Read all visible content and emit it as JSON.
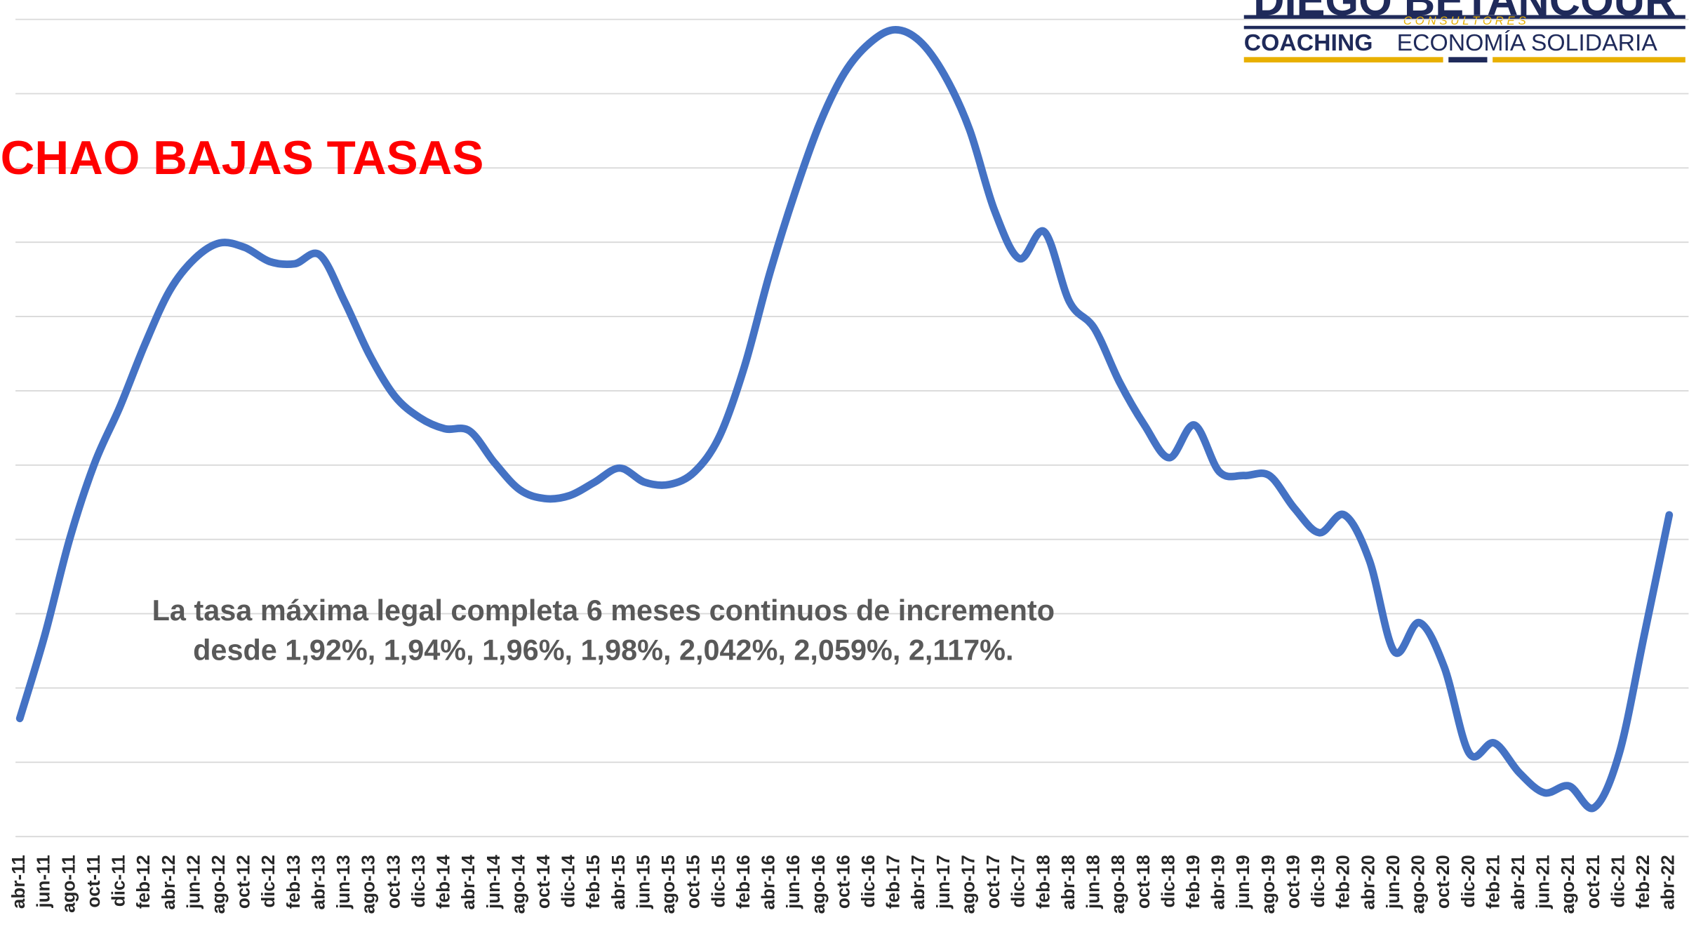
{
  "chart_data": {
    "type": "line",
    "title": "CHAO BAJAS TASAS",
    "annotation": [
      "La tasa máxima legal completa 6 meses continuos de incremento",
      "desde 1,92%, 1,94%, 1,96%, 1,98%, 2,042%, 2,059%, 2,117%."
    ],
    "logo": {
      "name": "DIEGO BETANCOUR",
      "tagline": "C O N S U L T O R E S",
      "line1": "COACHING",
      "line2": "ECONOMÍA SOLIDARIA"
    },
    "categories": [
      "abr-11",
      "jun-11",
      "ago-11",
      "oct-11",
      "dic-11",
      "feb-12",
      "abr-12",
      "jun-12",
      "ago-12",
      "oct-12",
      "dic-12",
      "feb-13",
      "abr-13",
      "jun-13",
      "ago-13",
      "oct-13",
      "dic-13",
      "feb-14",
      "abr-14",
      "jun-14",
      "ago-14",
      "oct-14",
      "dic-14",
      "feb-15",
      "abr-15",
      "jun-15",
      "ago-15",
      "oct-15",
      "dic-15",
      "feb-16",
      "abr-16",
      "jun-16",
      "ago-16",
      "oct-16",
      "dic-16",
      "feb-17",
      "abr-17",
      "jun-17",
      "ago-17",
      "oct-17",
      "dic-17",
      "feb-18",
      "abr-18",
      "jun-18",
      "ago-18",
      "oct-18",
      "dic-18",
      "feb-19",
      "abr-19",
      "jun-19",
      "ago-19",
      "oct-19",
      "dic-19",
      "feb-20",
      "abr-20",
      "jun-20",
      "ago-20",
      "oct-20",
      "dic-20",
      "feb-21",
      "abr-21",
      "jun-21",
      "ago-21",
      "oct-21",
      "dic-21",
      "feb-22",
      "abr-22"
    ],
    "values": [
      1.59,
      2.71,
      4.01,
      5.03,
      5.78,
      6.62,
      7.35,
      7.78,
      7.99,
      7.93,
      7.74,
      7.71,
      7.83,
      7.2,
      6.48,
      5.93,
      5.64,
      5.49,
      5.46,
      5.03,
      4.67,
      4.55,
      4.59,
      4.77,
      4.96,
      4.77,
      4.74,
      4.91,
      5.39,
      6.33,
      7.57,
      8.65,
      9.59,
      10.28,
      10.68,
      10.86,
      10.71,
      10.25,
      9.52,
      8.43,
      7.78,
      8.14,
      7.2,
      6.84,
      6.12,
      5.54,
      5.1,
      5.54,
      4.91,
      4.86,
      4.86,
      4.42,
      4.09,
      4.33,
      3.72,
      2.49,
      2.88,
      2.28,
      1.12,
      1.26,
      0.86,
      0.59,
      0.68,
      0.39,
      1.12,
      2.71,
      4.33
    ],
    "color": "#4472c4",
    "ylim": [
      0,
      11
    ],
    "grid": true
  }
}
